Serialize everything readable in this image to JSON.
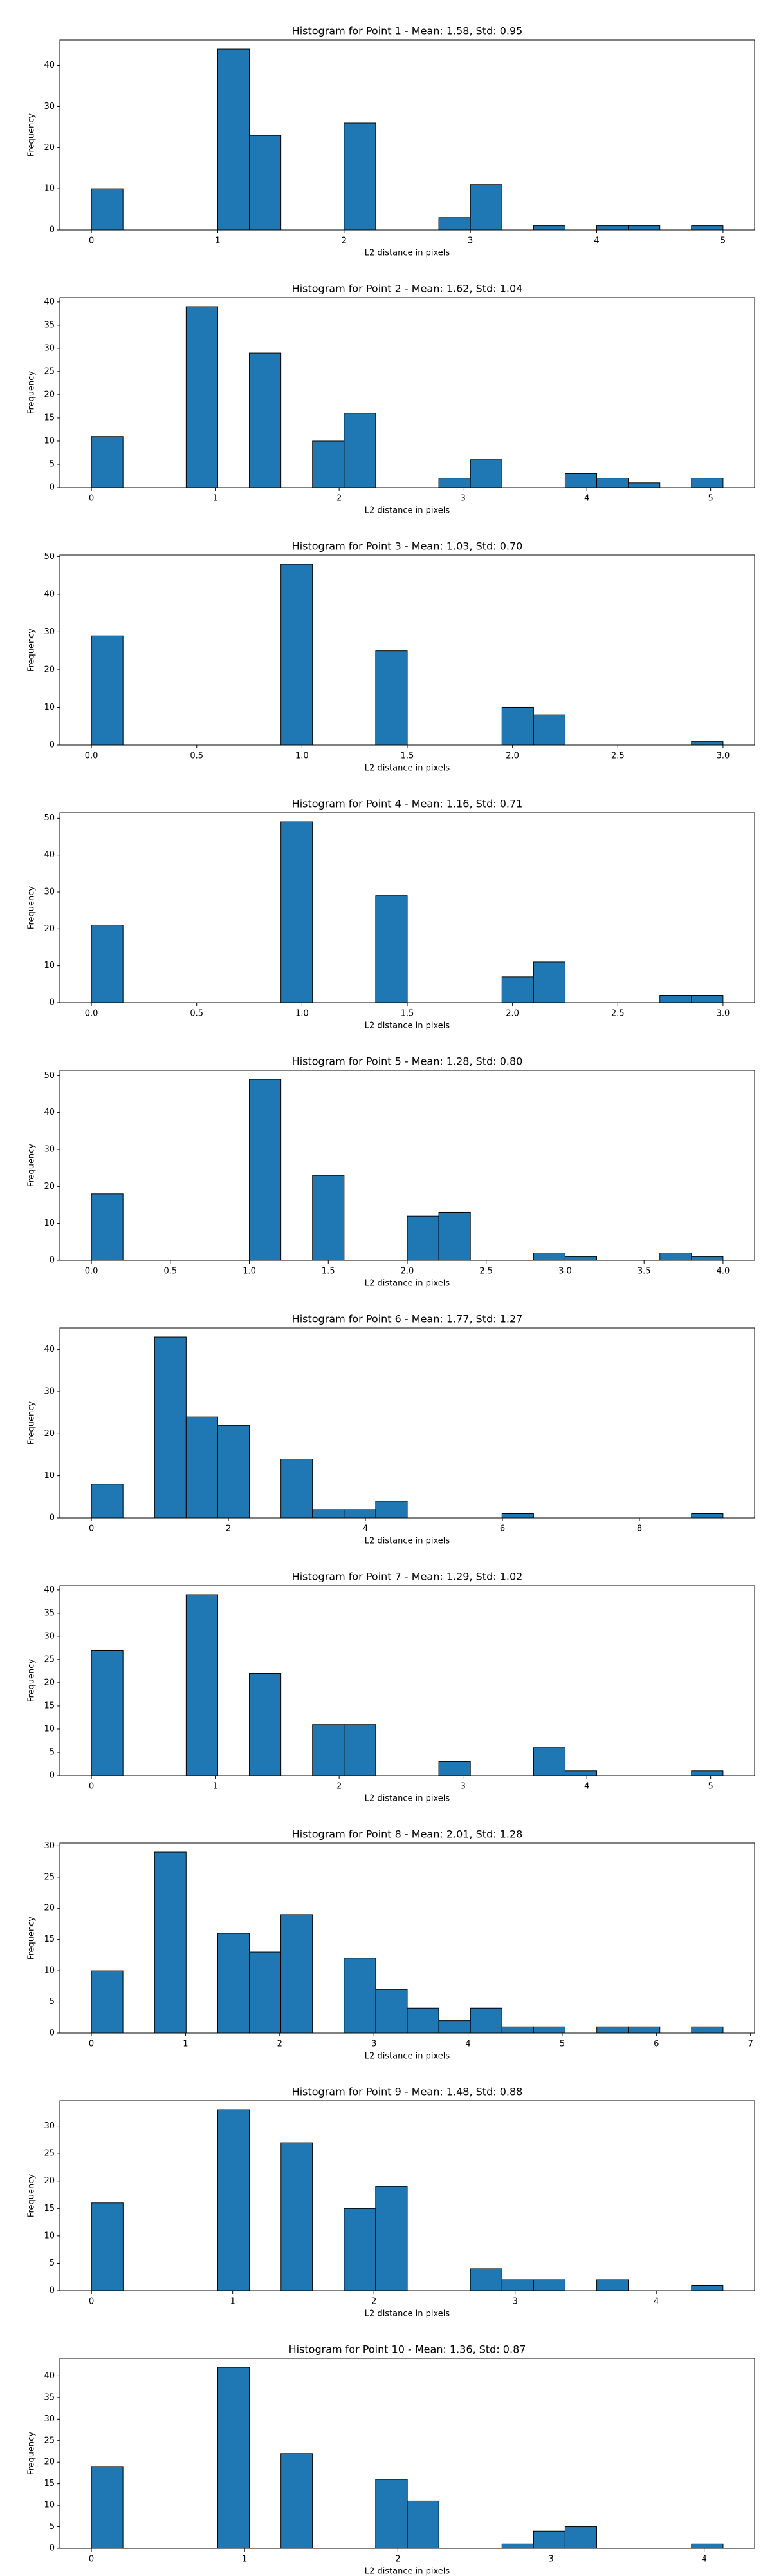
{
  "chart_data": [
    {
      "type": "histogram",
      "title": "Histogram for Point 1 - Mean: 1.58, Std: 0.95",
      "xlabel": "L2 distance in pixels",
      "ylabel": "Frequency",
      "color": "#1f77b4",
      "bins": [
        0,
        0.25,
        0.5,
        0.75,
        1,
        1.25,
        1.5,
        1.75,
        2,
        2.25,
        2.5,
        2.75,
        3,
        3.25,
        3.5,
        3.75,
        4,
        4.25,
        4.5,
        4.75,
        5
      ],
      "values": [
        10,
        0,
        0,
        0,
        44,
        23,
        0,
        0,
        26,
        0,
        0,
        3,
        11,
        0,
        1,
        0,
        1,
        1,
        0,
        1
      ],
      "xlim": [
        -0.25,
        5.25
      ],
      "ylim": [
        0,
        46.2
      ],
      "xticks": [
        0,
        1,
        2,
        3,
        4,
        5
      ],
      "yticks": [
        0,
        10,
        20,
        30,
        40
      ]
    },
    {
      "type": "histogram",
      "title": "Histogram for Point 2 - Mean: 1.62, Std: 1.04",
      "xlabel": "L2 distance in pixels",
      "ylabel": "Frequency",
      "color": "#1f77b4",
      "bins": [
        0,
        0.255,
        0.51,
        0.765,
        1.02,
        1.275,
        1.53,
        1.785,
        2.04,
        2.295,
        2.55,
        2.805,
        3.06,
        3.315,
        3.57,
        3.825,
        4.08,
        4.335,
        4.59,
        4.845,
        5.1
      ],
      "values": [
        11,
        0,
        0,
        39,
        0,
        29,
        0,
        10,
        16,
        0,
        0,
        2,
        6,
        0,
        0,
        3,
        2,
        1,
        0,
        2
      ],
      "xlim": [
        -0.255,
        5.355
      ],
      "ylim": [
        0,
        40.95
      ],
      "xticks": [
        0,
        1,
        2,
        3,
        4,
        5
      ],
      "yticks": [
        0,
        5,
        10,
        15,
        20,
        25,
        30,
        35,
        40
      ]
    },
    {
      "type": "histogram",
      "title": "Histogram for Point 3 - Mean: 1.03, Std: 0.70",
      "xlabel": "L2 distance in pixels",
      "ylabel": "Frequency",
      "color": "#1f77b4",
      "bins": [
        0,
        0.15,
        0.3,
        0.45,
        0.6,
        0.75,
        0.9,
        1.05,
        1.2,
        1.35,
        1.5,
        1.65,
        1.8,
        1.95,
        2.1,
        2.25,
        2.4,
        2.55,
        2.7,
        2.85,
        3
      ],
      "values": [
        29,
        0,
        0,
        0,
        0,
        0,
        48,
        0,
        0,
        25,
        0,
        0,
        0,
        10,
        8,
        0,
        0,
        0,
        0,
        1
      ],
      "xlim": [
        -0.15,
        3.15
      ],
      "ylim": [
        0,
        50.4
      ],
      "xticks": [
        {
          "value": 0,
          "label": "0.0"
        },
        0.5,
        {
          "value": 1,
          "label": "1.0"
        },
        1.5,
        {
          "value": 2,
          "label": "2.0"
        },
        2.5,
        {
          "value": 3,
          "label": "3.0"
        }
      ],
      "yticks": [
        0,
        10,
        20,
        30,
        40,
        50
      ]
    },
    {
      "type": "histogram",
      "title": "Histogram for Point 4 - Mean: 1.16, Std: 0.71",
      "xlabel": "L2 distance in pixels",
      "ylabel": "Frequency",
      "color": "#1f77b4",
      "bins": [
        0,
        0.15,
        0.3,
        0.45,
        0.6,
        0.75,
        0.9,
        1.05,
        1.2,
        1.35,
        1.5,
        1.65,
        1.8,
        1.95,
        2.1,
        2.25,
        2.4,
        2.55,
        2.7,
        2.85,
        3
      ],
      "values": [
        21,
        0,
        0,
        0,
        0,
        0,
        49,
        0,
        0,
        29,
        0,
        0,
        0,
        7,
        11,
        0,
        0,
        0,
        2,
        2
      ],
      "xlim": [
        -0.15,
        3.15
      ],
      "ylim": [
        0,
        51.45
      ],
      "xticks": [
        {
          "value": 0,
          "label": "0.0"
        },
        0.5,
        {
          "value": 1,
          "label": "1.0"
        },
        1.5,
        {
          "value": 2,
          "label": "2.0"
        },
        2.5,
        {
          "value": 3,
          "label": "3.0"
        }
      ],
      "yticks": [
        0,
        10,
        20,
        30,
        40,
        50
      ]
    },
    {
      "type": "histogram",
      "title": "Histogram for Point 5 - Mean: 1.28, Std: 0.80",
      "xlabel": "L2 distance in pixels",
      "ylabel": "Frequency",
      "color": "#1f77b4",
      "bins": [
        0,
        0.2,
        0.4,
        0.6,
        0.8,
        1,
        1.2,
        1.4,
        1.6,
        1.8,
        2,
        2.2,
        2.4,
        2.6,
        2.8,
        3,
        3.2,
        3.4,
        3.6,
        3.8,
        4
      ],
      "values": [
        18,
        0,
        0,
        0,
        0,
        49,
        0,
        23,
        0,
        0,
        12,
        13,
        0,
        0,
        2,
        1,
        0,
        0,
        2,
        1
      ],
      "xlim": [
        -0.2,
        4.2
      ],
      "ylim": [
        0,
        51.45
      ],
      "xticks": [
        {
          "value": 0,
          "label": "0.0"
        },
        0.5,
        {
          "value": 1,
          "label": "1.0"
        },
        1.5,
        {
          "value": 2,
          "label": "2.0"
        },
        2.5,
        {
          "value": 3,
          "label": "3.0"
        },
        3.5,
        {
          "value": 4,
          "label": "4.0"
        }
      ],
      "yticks": [
        0,
        10,
        20,
        30,
        40,
        50
      ]
    },
    {
      "type": "histogram",
      "title": "Histogram for Point 6 - Mean: 1.77, Std: 1.27",
      "xlabel": "L2 distance in pixels",
      "ylabel": "Frequency",
      "color": "#1f77b4",
      "bins": [
        0,
        0.461,
        0.922,
        1.383,
        1.844,
        2.305,
        2.766,
        3.227,
        3.688,
        4.149,
        4.61,
        5.071,
        5.532,
        5.993,
        6.454,
        6.915,
        7.376,
        7.837,
        8.298,
        8.759,
        9.22
      ],
      "values": [
        8,
        0,
        43,
        24,
        22,
        0,
        14,
        2,
        2,
        4,
        0,
        0,
        0,
        1,
        0,
        0,
        0,
        0,
        0,
        1
      ],
      "xlim": [
        -0.461,
        9.681
      ],
      "ylim": [
        0,
        45.15
      ],
      "xticks": [
        0,
        2,
        4,
        6,
        8
      ],
      "yticks": [
        0,
        10,
        20,
        30,
        40
      ]
    },
    {
      "type": "histogram",
      "title": "Histogram for Point 7 - Mean: 1.29, Std: 1.02",
      "xlabel": "L2 distance in pixels",
      "ylabel": "Frequency",
      "color": "#1f77b4",
      "bins": [
        0,
        0.255,
        0.51,
        0.765,
        1.02,
        1.275,
        1.53,
        1.785,
        2.04,
        2.295,
        2.55,
        2.805,
        3.06,
        3.315,
        3.57,
        3.825,
        4.08,
        4.335,
        4.59,
        4.845,
        5.1
      ],
      "values": [
        27,
        0,
        0,
        39,
        0,
        22,
        0,
        11,
        11,
        0,
        0,
        3,
        0,
        0,
        6,
        1,
        0,
        0,
        0,
        1
      ],
      "xlim": [
        -0.255,
        5.355
      ],
      "ylim": [
        0,
        40.95
      ],
      "xticks": [
        0,
        1,
        2,
        3,
        4,
        5
      ],
      "yticks": [
        0,
        5,
        10,
        15,
        20,
        25,
        30,
        35,
        40
      ]
    },
    {
      "type": "histogram",
      "title": "Histogram for Point 8 - Mean: 2.01, Std: 1.28",
      "xlabel": "L2 distance in pixels",
      "ylabel": "Frequency",
      "color": "#1f77b4",
      "bins": [
        0,
        0.335,
        0.671,
        1.006,
        1.342,
        1.677,
        2.012,
        2.348,
        2.683,
        3.019,
        3.354,
        3.689,
        4.025,
        4.36,
        4.696,
        5.031,
        5.367,
        5.702,
        6.037,
        6.373,
        6.708
      ],
      "values": [
        10,
        0,
        29,
        0,
        16,
        13,
        19,
        0,
        12,
        7,
        4,
        2,
        4,
        1,
        1,
        0,
        1,
        1,
        0,
        1
      ],
      "xlim": [
        -0.335,
        7.043
      ],
      "ylim": [
        0,
        30.45
      ],
      "xticks": [
        0,
        1,
        2,
        3,
        4,
        5,
        6,
        7
      ],
      "yticks": [
        0,
        5,
        10,
        15,
        20,
        25,
        30
      ]
    },
    {
      "type": "histogram",
      "title": "Histogram for Point 9 - Mean: 1.48, Std: 0.88",
      "xlabel": "L2 distance in pixels",
      "ylabel": "Frequency",
      "color": "#1f77b4",
      "bins": [
        0,
        0.224,
        0.447,
        0.671,
        0.894,
        1.118,
        1.342,
        1.565,
        1.789,
        2.012,
        2.236,
        2.46,
        2.683,
        2.907,
        3.131,
        3.354,
        3.578,
        3.801,
        4.025,
        4.249,
        4.472
      ],
      "values": [
        16,
        0,
        0,
        0,
        33,
        0,
        27,
        0,
        15,
        19,
        0,
        0,
        4,
        2,
        2,
        0,
        2,
        0,
        0,
        1
      ],
      "xlim": [
        -0.224,
        4.696
      ],
      "ylim": [
        0,
        34.65
      ],
      "xticks": [
        0,
        1,
        2,
        3,
        4
      ],
      "yticks": [
        0,
        5,
        10,
        15,
        20,
        25,
        30
      ]
    },
    {
      "type": "histogram",
      "title": "Histogram for Point 10 - Mean: 1.36, Std: 0.87",
      "xlabel": "L2 distance in pixels",
      "ylabel": "Frequency",
      "color": "#1f77b4",
      "bins": [
        0,
        0.206,
        0.412,
        0.618,
        0.825,
        1.031,
        1.237,
        1.443,
        1.649,
        1.855,
        2.062,
        2.268,
        2.474,
        2.68,
        2.886,
        3.092,
        3.298,
        3.505,
        3.711,
        3.917,
        4.123
      ],
      "values": [
        19,
        0,
        0,
        0,
        42,
        0,
        22,
        0,
        0,
        16,
        11,
        0,
        0,
        1,
        4,
        5,
        0,
        0,
        0,
        1
      ],
      "xlim": [
        -0.206,
        4.329
      ],
      "ylim": [
        0,
        44.1
      ],
      "xticks": [
        0,
        1,
        2,
        3,
        4
      ],
      "yticks": [
        0,
        5,
        10,
        15,
        20,
        25,
        30,
        35,
        40
      ]
    }
  ]
}
